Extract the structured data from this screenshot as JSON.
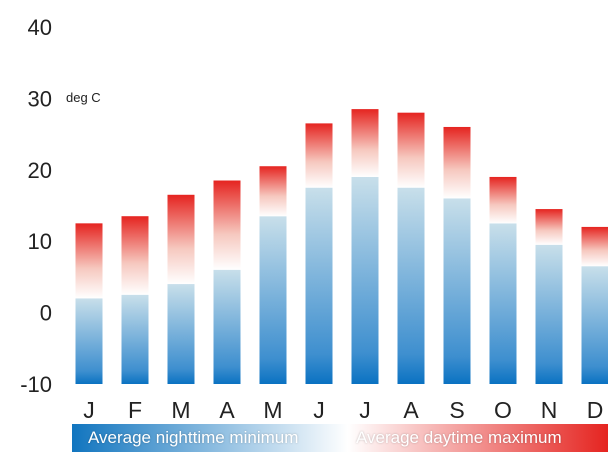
{
  "chart_data": {
    "type": "bar",
    "categories": [
      "J",
      "F",
      "M",
      "A",
      "M",
      "J",
      "J",
      "A",
      "S",
      "O",
      "N",
      "D"
    ],
    "series": [
      {
        "name": "Average nighttime minimum",
        "values": [
          2,
          2.5,
          4,
          6,
          13.5,
          17.5,
          19,
          17.5,
          16,
          12.5,
          9.5,
          6.5
        ]
      },
      {
        "name": "Average daytime maximum",
        "values": [
          12.5,
          13.5,
          16.5,
          18.5,
          20.5,
          26.5,
          28.5,
          28,
          26,
          19,
          14.5,
          12
        ]
      }
    ],
    "unit_label": "deg C",
    "y_ticks": [
      "40",
      "30",
      "20",
      "10",
      "0",
      "-10"
    ],
    "ylim": [
      -10,
      40
    ],
    "grid": false,
    "legend_position": "bottom"
  },
  "colors": {
    "min_bottom": "#0a72c2",
    "min_top": "#c8dfea",
    "max_bottom": "#ffffff",
    "max_top": "#e52420",
    "legend_min_left": "#1175bf",
    "legend_min_right": "#ffffff",
    "legend_max_left": "#ffffff",
    "legend_max_right": "#e52420",
    "text": "#222222"
  }
}
